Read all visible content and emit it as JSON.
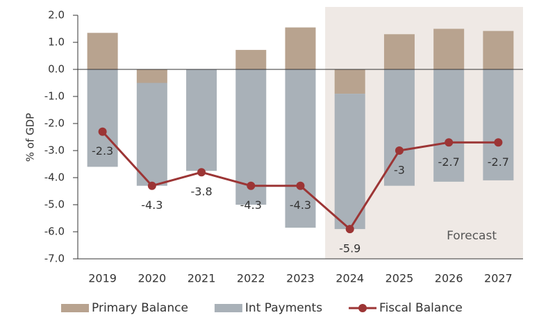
{
  "chart_data": {
    "type": "stacked-bar-line",
    "y_label": "% of GDP",
    "categories": [
      "2019",
      "2020",
      "2021",
      "2022",
      "2023",
      "2024",
      "2025",
      "2026",
      "2027"
    ],
    "series": [
      {
        "name": "Primary Balance",
        "type": "bar",
        "color": "#b8a38f",
        "values": [
          1.35,
          -0.5,
          0,
          0.72,
          1.55,
          -0.9,
          1.3,
          1.5,
          1.42
        ]
      },
      {
        "name": "Int Payments",
        "type": "bar",
        "color": "#a9b1b8",
        "values": [
          -3.6,
          -3.8,
          -3.75,
          -5.0,
          -5.85,
          -5.0,
          -4.3,
          -4.15,
          -4.1
        ]
      },
      {
        "name": "Fiscal Balance",
        "type": "line",
        "color": "#9c3535",
        "values": [
          -2.3,
          -4.3,
          -3.8,
          -4.3,
          -4.3,
          -5.9,
          -3.0,
          -2.7,
          -2.7
        ]
      }
    ],
    "ylim": [
      -7,
      2
    ],
    "yticks": [
      {
        "value": -7,
        "label": "-7.0"
      },
      {
        "value": -6,
        "label": "-6.0"
      },
      {
        "value": -5,
        "label": "-5.0"
      },
      {
        "value": -4,
        "label": "-4.0"
      },
      {
        "value": -3,
        "label": "-3.0"
      },
      {
        "value": -2,
        "label": "-2.0"
      },
      {
        "value": -1,
        "label": "-1.0"
      },
      {
        "value": 0,
        "label": "0.0"
      },
      {
        "value": 1,
        "label": "1.0"
      },
      {
        "value": 2,
        "label": "2.0"
      }
    ],
    "annotation": {
      "text": "Forecast",
      "from": "2024"
    },
    "legend": "bottom"
  }
}
